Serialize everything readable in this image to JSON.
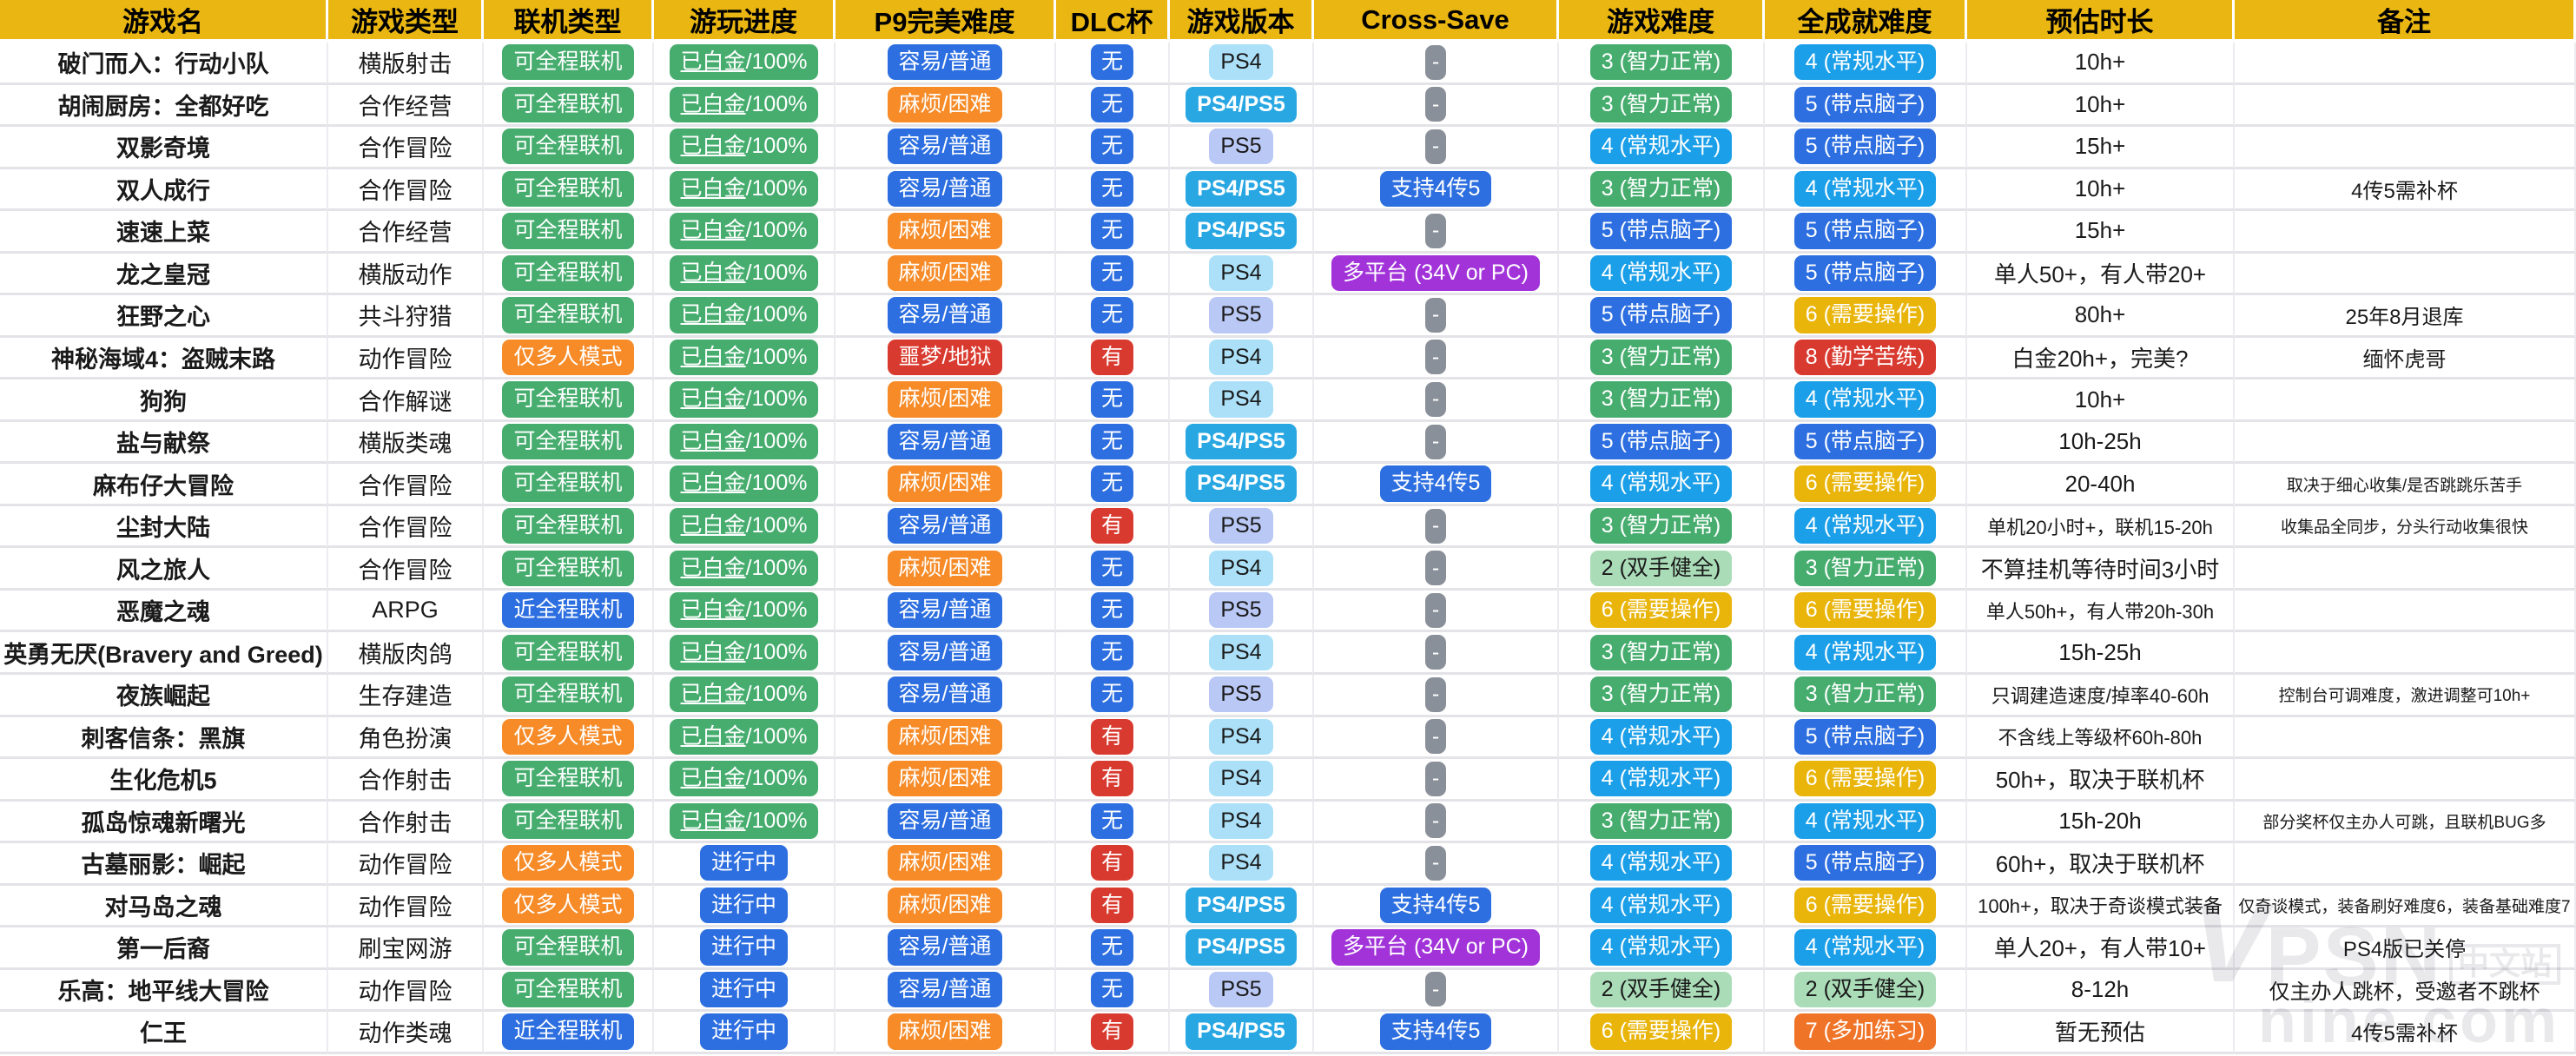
{
  "header": {
    "columns": [
      "游戏名",
      "游戏类型",
      "联机类型",
      "游玩进度",
      "P9完美难度",
      "DLC杯",
      "游戏版本",
      "Cross-Save",
      "游戏难度",
      "全成就难度",
      "预估时长",
      "备注"
    ]
  },
  "color_map": {
    "可全程联机": "green",
    "仅多人模式": "orange",
    "近全程联机": "blue",
    "已白金/100%": "green",
    "进行中": "blue",
    "容易/普通": "blue",
    "麻烦/困难": "orange",
    "噩梦/地狱": "red",
    "无": "blue",
    "有": "red",
    "PS4": "ps4",
    "PS5": "ps5",
    "PS4/PS5": "ps45",
    "-": "gray",
    "支持4传5": "blue",
    "多平台 (34V or PC)": "purple",
    "2 (双手健全)": "lightgreen",
    "3 (智力正常)": "green",
    "4 (常规水平)": "brightblue",
    "5 (带点脑子)": "blue",
    "6 (需要操作)": "yellow",
    "7 (多加练习)": "deeporange",
    "8 (勤学苦练)": "red"
  },
  "rows": [
    {
      "name": "破门而入：行动小队",
      "type": "横版射击",
      "online": "可全程联机",
      "progress": "已白金/100%",
      "p9": "容易/普通",
      "dlc": "无",
      "ver": "PS4",
      "cross": "-",
      "diff": "3 (智力正常)",
      "ach": "4 (常规水平)",
      "time": "10h+",
      "note": ""
    },
    {
      "name": "胡闹厨房：全都好吃",
      "type": "合作经营",
      "online": "可全程联机",
      "progress": "已白金/100%",
      "p9": "麻烦/困难",
      "dlc": "无",
      "ver": "PS4/PS5",
      "cross": "-",
      "diff": "3 (智力正常)",
      "ach": "5 (带点脑子)",
      "time": "10h+",
      "note": ""
    },
    {
      "name": "双影奇境",
      "type": "合作冒险",
      "online": "可全程联机",
      "progress": "已白金/100%",
      "p9": "容易/普通",
      "dlc": "无",
      "ver": "PS5",
      "cross": "-",
      "diff": "4 (常规水平)",
      "ach": "5 (带点脑子)",
      "time": "15h+",
      "note": ""
    },
    {
      "name": "双人成行",
      "type": "合作冒险",
      "online": "可全程联机",
      "progress": "已白金/100%",
      "p9": "容易/普通",
      "dlc": "无",
      "ver": "PS4/PS5",
      "cross": "支持4传5",
      "diff": "3 (智力正常)",
      "ach": "4 (常规水平)",
      "time": "10h+",
      "note": "4传5需补杯"
    },
    {
      "name": "速速上菜",
      "type": "合作经营",
      "online": "可全程联机",
      "progress": "已白金/100%",
      "p9": "麻烦/困难",
      "dlc": "无",
      "ver": "PS4/PS5",
      "cross": "-",
      "diff": "5 (带点脑子)",
      "ach": "5 (带点脑子)",
      "time": "15h+",
      "note": ""
    },
    {
      "name": "龙之皇冠",
      "type": "横版动作",
      "online": "可全程联机",
      "progress": "已白金/100%",
      "p9": "麻烦/困难",
      "dlc": "无",
      "ver": "PS4",
      "cross": "多平台 (34V or PC)",
      "diff": "4 (常规水平)",
      "ach": "5 (带点脑子)",
      "time": "单人50+，有人带20+",
      "note": ""
    },
    {
      "name": "狂野之心",
      "type": "共斗狩猎",
      "online": "可全程联机",
      "progress": "已白金/100%",
      "p9": "容易/普通",
      "dlc": "无",
      "ver": "PS5",
      "cross": "-",
      "diff": "5 (带点脑子)",
      "ach": "6 (需要操作)",
      "time": "80h+",
      "note": "25年8月退库"
    },
    {
      "name": "神秘海域4：盗贼末路",
      "type": "动作冒险",
      "online": "仅多人模式",
      "progress": "已白金/100%",
      "p9": "噩梦/地狱",
      "dlc": "有",
      "ver": "PS4",
      "cross": "-",
      "diff": "3 (智力正常)",
      "ach": "8 (勤学苦练)",
      "time": "白金20h+，完美?",
      "note": "缅怀虎哥"
    },
    {
      "name": "狗狗",
      "type": "合作解谜",
      "online": "可全程联机",
      "progress": "已白金/100%",
      "p9": "麻烦/困难",
      "dlc": "无",
      "ver": "PS4",
      "cross": "-",
      "diff": "3 (智力正常)",
      "ach": "4 (常规水平)",
      "time": "10h+",
      "note": ""
    },
    {
      "name": "盐与献祭",
      "type": "横版类魂",
      "online": "可全程联机",
      "progress": "已白金/100%",
      "p9": "容易/普通",
      "dlc": "无",
      "ver": "PS4/PS5",
      "cross": "-",
      "diff": "5 (带点脑子)",
      "ach": "5 (带点脑子)",
      "time": "10h-25h",
      "note": ""
    },
    {
      "name": "麻布仔大冒险",
      "type": "合作冒险",
      "online": "可全程联机",
      "progress": "已白金/100%",
      "p9": "麻烦/困难",
      "dlc": "无",
      "ver": "PS4/PS5",
      "cross": "支持4传5",
      "diff": "4 (常规水平)",
      "ach": "6 (需要操作)",
      "time": "20-40h",
      "note": "取决于细心收集/是否跳跳乐苦手"
    },
    {
      "name": "尘封大陆",
      "type": "合作冒险",
      "online": "可全程联机",
      "progress": "已白金/100%",
      "p9": "容易/普通",
      "dlc": "有",
      "ver": "PS5",
      "cross": "-",
      "diff": "3 (智力正常)",
      "ach": "4 (常规水平)",
      "time": "单机20小时+，联机15-20h",
      "note": "收集品全同步，分头行动收集很快"
    },
    {
      "name": "风之旅人",
      "type": "合作冒险",
      "online": "可全程联机",
      "progress": "已白金/100%",
      "p9": "麻烦/困难",
      "dlc": "无",
      "ver": "PS4",
      "cross": "-",
      "diff": "2 (双手健全)",
      "ach": "3 (智力正常)",
      "time": "不算挂机等待时间3小时",
      "note": ""
    },
    {
      "name": "恶魔之魂",
      "type": "ARPG",
      "online": "近全程联机",
      "progress": "已白金/100%",
      "p9": "容易/普通",
      "dlc": "无",
      "ver": "PS5",
      "cross": "-",
      "diff": "6 (需要操作)",
      "ach": "6 (需要操作)",
      "time": "单人50h+，有人带20h-30h",
      "note": ""
    },
    {
      "name": "英勇无厌(Bravery and Greed)",
      "type": "横版肉鸽",
      "online": "可全程联机",
      "progress": "已白金/100%",
      "p9": "容易/普通",
      "dlc": "无",
      "ver": "PS4",
      "cross": "-",
      "diff": "3 (智力正常)",
      "ach": "4 (常规水平)",
      "time": "15h-25h",
      "note": ""
    },
    {
      "name": "夜族崛起",
      "type": "生存建造",
      "online": "可全程联机",
      "progress": "已白金/100%",
      "p9": "容易/普通",
      "dlc": "无",
      "ver": "PS5",
      "cross": "-",
      "diff": "3 (智力正常)",
      "ach": "3 (智力正常)",
      "time": "只调建造速度/掉率40-60h",
      "note": "控制台可调难度，激进调整可10h+"
    },
    {
      "name": "刺客信条：黑旗",
      "type": "角色扮演",
      "online": "仅多人模式",
      "progress": "已白金/100%",
      "p9": "麻烦/困难",
      "dlc": "有",
      "ver": "PS4",
      "cross": "-",
      "diff": "4 (常规水平)",
      "ach": "5 (带点脑子)",
      "time": "不含线上等级杯60h-80h",
      "note": ""
    },
    {
      "name": "生化危机5",
      "type": "合作射击",
      "online": "可全程联机",
      "progress": "已白金/100%",
      "p9": "麻烦/困难",
      "dlc": "有",
      "ver": "PS4",
      "cross": "-",
      "diff": "4 (常规水平)",
      "ach": "6 (需要操作)",
      "time": "50h+，取决于联机杯",
      "note": ""
    },
    {
      "name": "孤岛惊魂新曙光",
      "type": "合作射击",
      "online": "可全程联机",
      "progress": "已白金/100%",
      "p9": "容易/普通",
      "dlc": "无",
      "ver": "PS4",
      "cross": "-",
      "diff": "3 (智力正常)",
      "ach": "4 (常规水平)",
      "time": "15h-20h",
      "note": "部分奖杯仅主办人可跳，且联机BUG多"
    },
    {
      "name": "古墓丽影：崛起",
      "type": "动作冒险",
      "online": "仅多人模式",
      "progress": "进行中",
      "p9": "麻烦/困难",
      "dlc": "有",
      "ver": "PS4",
      "cross": "-",
      "diff": "4 (常规水平)",
      "ach": "5 (带点脑子)",
      "time": "60h+，取决于联机杯",
      "note": ""
    },
    {
      "name": "对马岛之魂",
      "type": "动作冒险",
      "online": "仅多人模式",
      "progress": "进行中",
      "p9": "麻烦/困难",
      "dlc": "有",
      "ver": "PS4/PS5",
      "cross": "支持4传5",
      "diff": "4 (常规水平)",
      "ach": "6 (需要操作)",
      "time": "100h+，取决于奇谈模式装备",
      "note": "仅奇谈模式，装备刷好难度6，装备基础难度7"
    },
    {
      "name": "第一后裔",
      "type": "刷宝网游",
      "online": "可全程联机",
      "progress": "进行中",
      "p9": "容易/普通",
      "dlc": "无",
      "ver": "PS4/PS5",
      "cross": "多平台 (34V or PC)",
      "diff": "4 (常规水平)",
      "ach": "4 (常规水平)",
      "time": "单人20+，有人带10+",
      "note": "PS4版已关停"
    },
    {
      "name": "乐高：地平线大冒险",
      "type": "动作冒险",
      "online": "可全程联机",
      "progress": "进行中",
      "p9": "容易/普通",
      "dlc": "无",
      "ver": "PS5",
      "cross": "-",
      "diff": "2 (双手健全)",
      "ach": "2 (双手健全)",
      "time": "8-12h",
      "note": "仅主办人跳杯，受邀者不跳杯"
    },
    {
      "name": "仁王",
      "type": "动作类魂",
      "online": "近全程联机",
      "progress": "进行中",
      "p9": "麻烦/困难",
      "dlc": "有",
      "ver": "PS4/PS5",
      "cross": "支持4传5",
      "diff": "6 (需要操作)",
      "ach": "7 (多加练习)",
      "time": "暂无预估",
      "note": "4传5需补杯"
    }
  ],
  "watermark": {
    "psn": "PSN",
    "cn_badge": "中文站",
    "domain": "nine.com",
    "logo_glyph": "V"
  }
}
